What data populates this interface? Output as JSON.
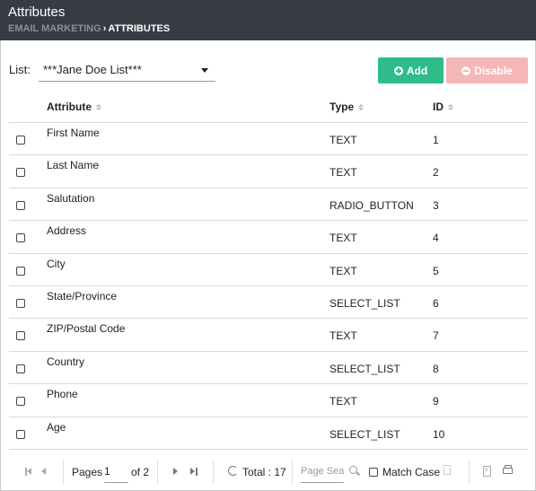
{
  "header": {
    "title": "Attributes",
    "breadcrumb": [
      "EMAIL MARKETING",
      "ATTRIBUTES"
    ],
    "bg_color": "#373c44"
  },
  "list": {
    "label": "List:",
    "selected": "***Jane Doe List***"
  },
  "toolbar": {
    "add_label": "Add",
    "disable_label": "Disable",
    "add_color": "#2ebc8b",
    "disable_color": "#f4b6b6"
  },
  "table": {
    "columns": [
      "Attribute",
      "Type",
      "ID"
    ],
    "rows": [
      {
        "attribute": "First Name",
        "type": "TEXT",
        "id": "1"
      },
      {
        "attribute": "Last Name",
        "type": "TEXT",
        "id": "2"
      },
      {
        "attribute": "Salutation",
        "type": "RADIO_BUTTON",
        "id": "3"
      },
      {
        "attribute": "Address",
        "type": "TEXT",
        "id": "4"
      },
      {
        "attribute": "City",
        "type": "TEXT",
        "id": "5"
      },
      {
        "attribute": "State/Province",
        "type": "SELECT_LIST",
        "id": "6"
      },
      {
        "attribute": "ZIP/Postal Code",
        "type": "TEXT",
        "id": "7"
      },
      {
        "attribute": "Country",
        "type": "SELECT_LIST",
        "id": "8"
      },
      {
        "attribute": "Phone",
        "type": "TEXT",
        "id": "9"
      },
      {
        "attribute": "Age",
        "type": "SELECT_LIST",
        "id": "10"
      }
    ]
  },
  "pager": {
    "pages_label": "Pages",
    "current_page": "1",
    "of_label": "of 2",
    "total_label": "Total : 17",
    "search_placeholder": "Page Search",
    "match_case_label": "Match Case"
  }
}
